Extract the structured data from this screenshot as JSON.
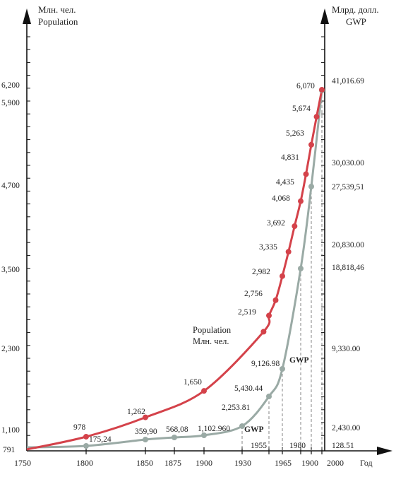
{
  "chart_data": {
    "type": "line",
    "left_axis_title": [
      "Млн. чел.",
      "Population"
    ],
    "right_axis_title": [
      "Млрд. долл.",
      "GWP"
    ],
    "x_unit": "Год",
    "x_ticks": [
      "1750",
      "1800",
      "1850",
      "1875",
      "1900",
      "1930",
      "1965",
      "1900",
      "2000"
    ],
    "x_extra_labels": [
      "1955",
      "1980"
    ],
    "left_ticks": [
      "791",
      "1,100",
      "2,300",
      "3,500",
      "4,700",
      "5,900",
      "6,200"
    ],
    "right_ticks": [
      "128.51",
      "2,430.00",
      "9,330.00",
      "18,818,46",
      "20,830.00",
      "27,539,51",
      "30,030.00",
      "41,016.69"
    ],
    "series": [
      {
        "name": "Population / Млн. чел.",
        "short_name": "Population",
        "short_name_ru": "Млн. чел.",
        "color": "#d4424a",
        "points": [
          {
            "x": 1750,
            "y": 791,
            "label": "791"
          },
          {
            "x": 1800,
            "y": 978,
            "label": "978"
          },
          {
            "x": 1850,
            "y": 1262,
            "label": "1,262"
          },
          {
            "x": 1900,
            "y": 1650,
            "label": "1,650"
          },
          {
            "x": 1950,
            "y": 2519,
            "label": "2,519"
          },
          {
            "x": 1955,
            "y": 2756,
            "label": "2,756"
          },
          {
            "x": 1960,
            "y": 2982,
            "label": "2,982"
          },
          {
            "x": 1965,
            "y": 3335,
            "label": "3,335"
          },
          {
            "x": 1970,
            "y": 3692,
            "label": "3,692"
          },
          {
            "x": 1975,
            "y": 4068,
            "label": "4,068"
          },
          {
            "x": 1980,
            "y": 4435,
            "label": "4,435"
          },
          {
            "x": 1985,
            "y": 4831,
            "label": "4,831"
          },
          {
            "x": 1990,
            "y": 5263,
            "label": "5,263"
          },
          {
            "x": 1995,
            "y": 5674,
            "label": "5,674"
          },
          {
            "x": 2000,
            "y": 6070,
            "label": "6,070"
          }
        ]
      },
      {
        "name": "GWP",
        "color": "#9aaaa5",
        "points": [
          {
            "x": 1750,
            "y": 128.51,
            "label": ""
          },
          {
            "x": 1800,
            "y": 175.24,
            "label": "175,24"
          },
          {
            "x": 1850,
            "y": 359.9,
            "label": "359,90"
          },
          {
            "x": 1875,
            "y": 568.08,
            "label": "568,08"
          },
          {
            "x": 1900,
            "y": 1102.96,
            "label": "1,102.960"
          },
          {
            "x": 1930,
            "y": 2253.81,
            "label": "2,253.81"
          },
          {
            "x": 1955,
            "y": 5430.44,
            "label": "5,430.44"
          },
          {
            "x": 1965,
            "y": 9126.98,
            "label": "9,126.98"
          },
          {
            "x": 1980,
            "y": 18818.46,
            "label": ""
          },
          {
            "x": 1990,
            "y": 27539.51,
            "label": ""
          },
          {
            "x": 2000,
            "y": 41016.69,
            "label": ""
          }
        ]
      }
    ],
    "gwp_curve_labels": [
      "GWP",
      "GWP"
    ]
  }
}
